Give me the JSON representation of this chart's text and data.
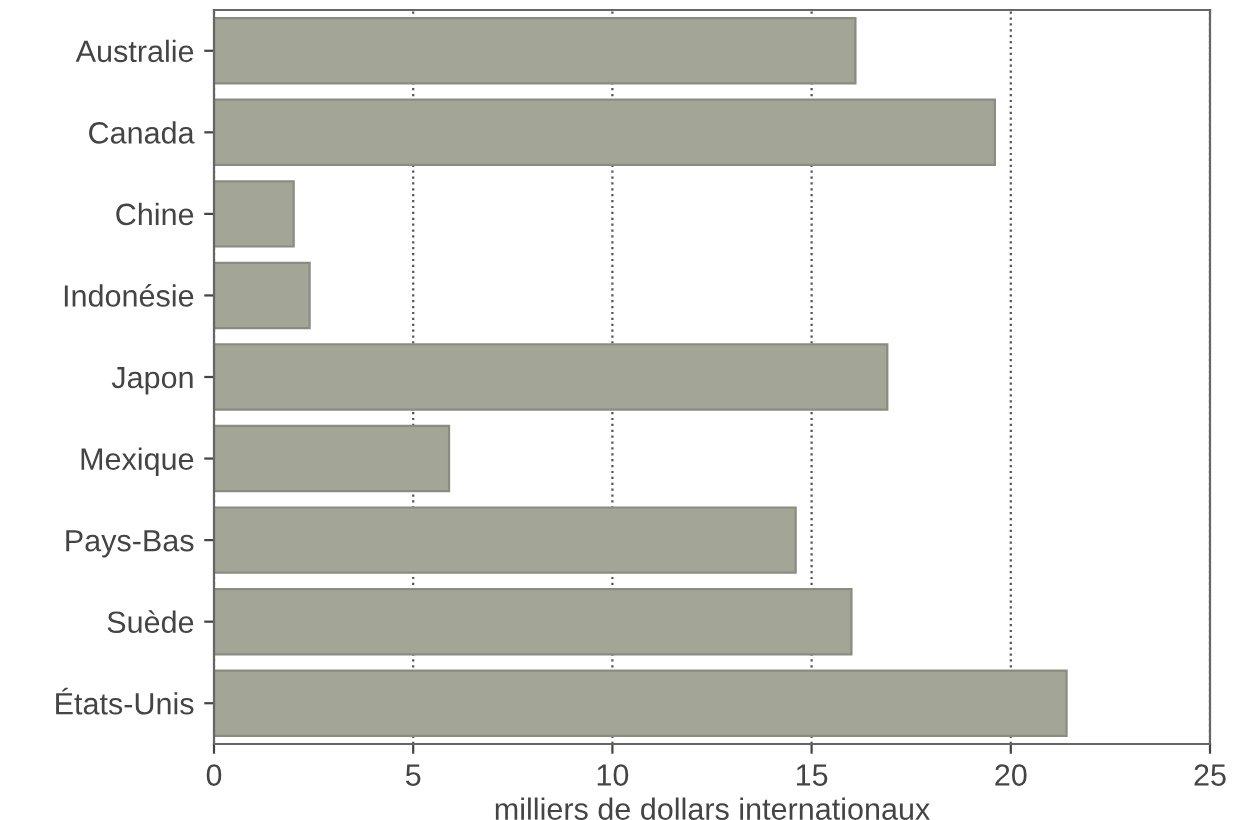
{
  "chart_data": {
    "type": "bar",
    "orientation": "horizontal",
    "xlabel": "milliers de dollars internationaux",
    "categories": [
      "Australie",
      "Canada",
      "Chine",
      "Indonésie",
      "Japon",
      "Mexique",
      "Pays-Bas",
      "Suède",
      "États-Unis"
    ],
    "values": [
      16.1,
      19.6,
      2.0,
      2.4,
      16.9,
      5.9,
      14.6,
      16.0,
      21.4
    ],
    "color": "#a3a697",
    "xlim": [
      0,
      25
    ],
    "xticks": [
      0,
      5,
      10,
      15,
      20,
      25
    ],
    "grid": "x",
    "line_style": "dotted"
  }
}
